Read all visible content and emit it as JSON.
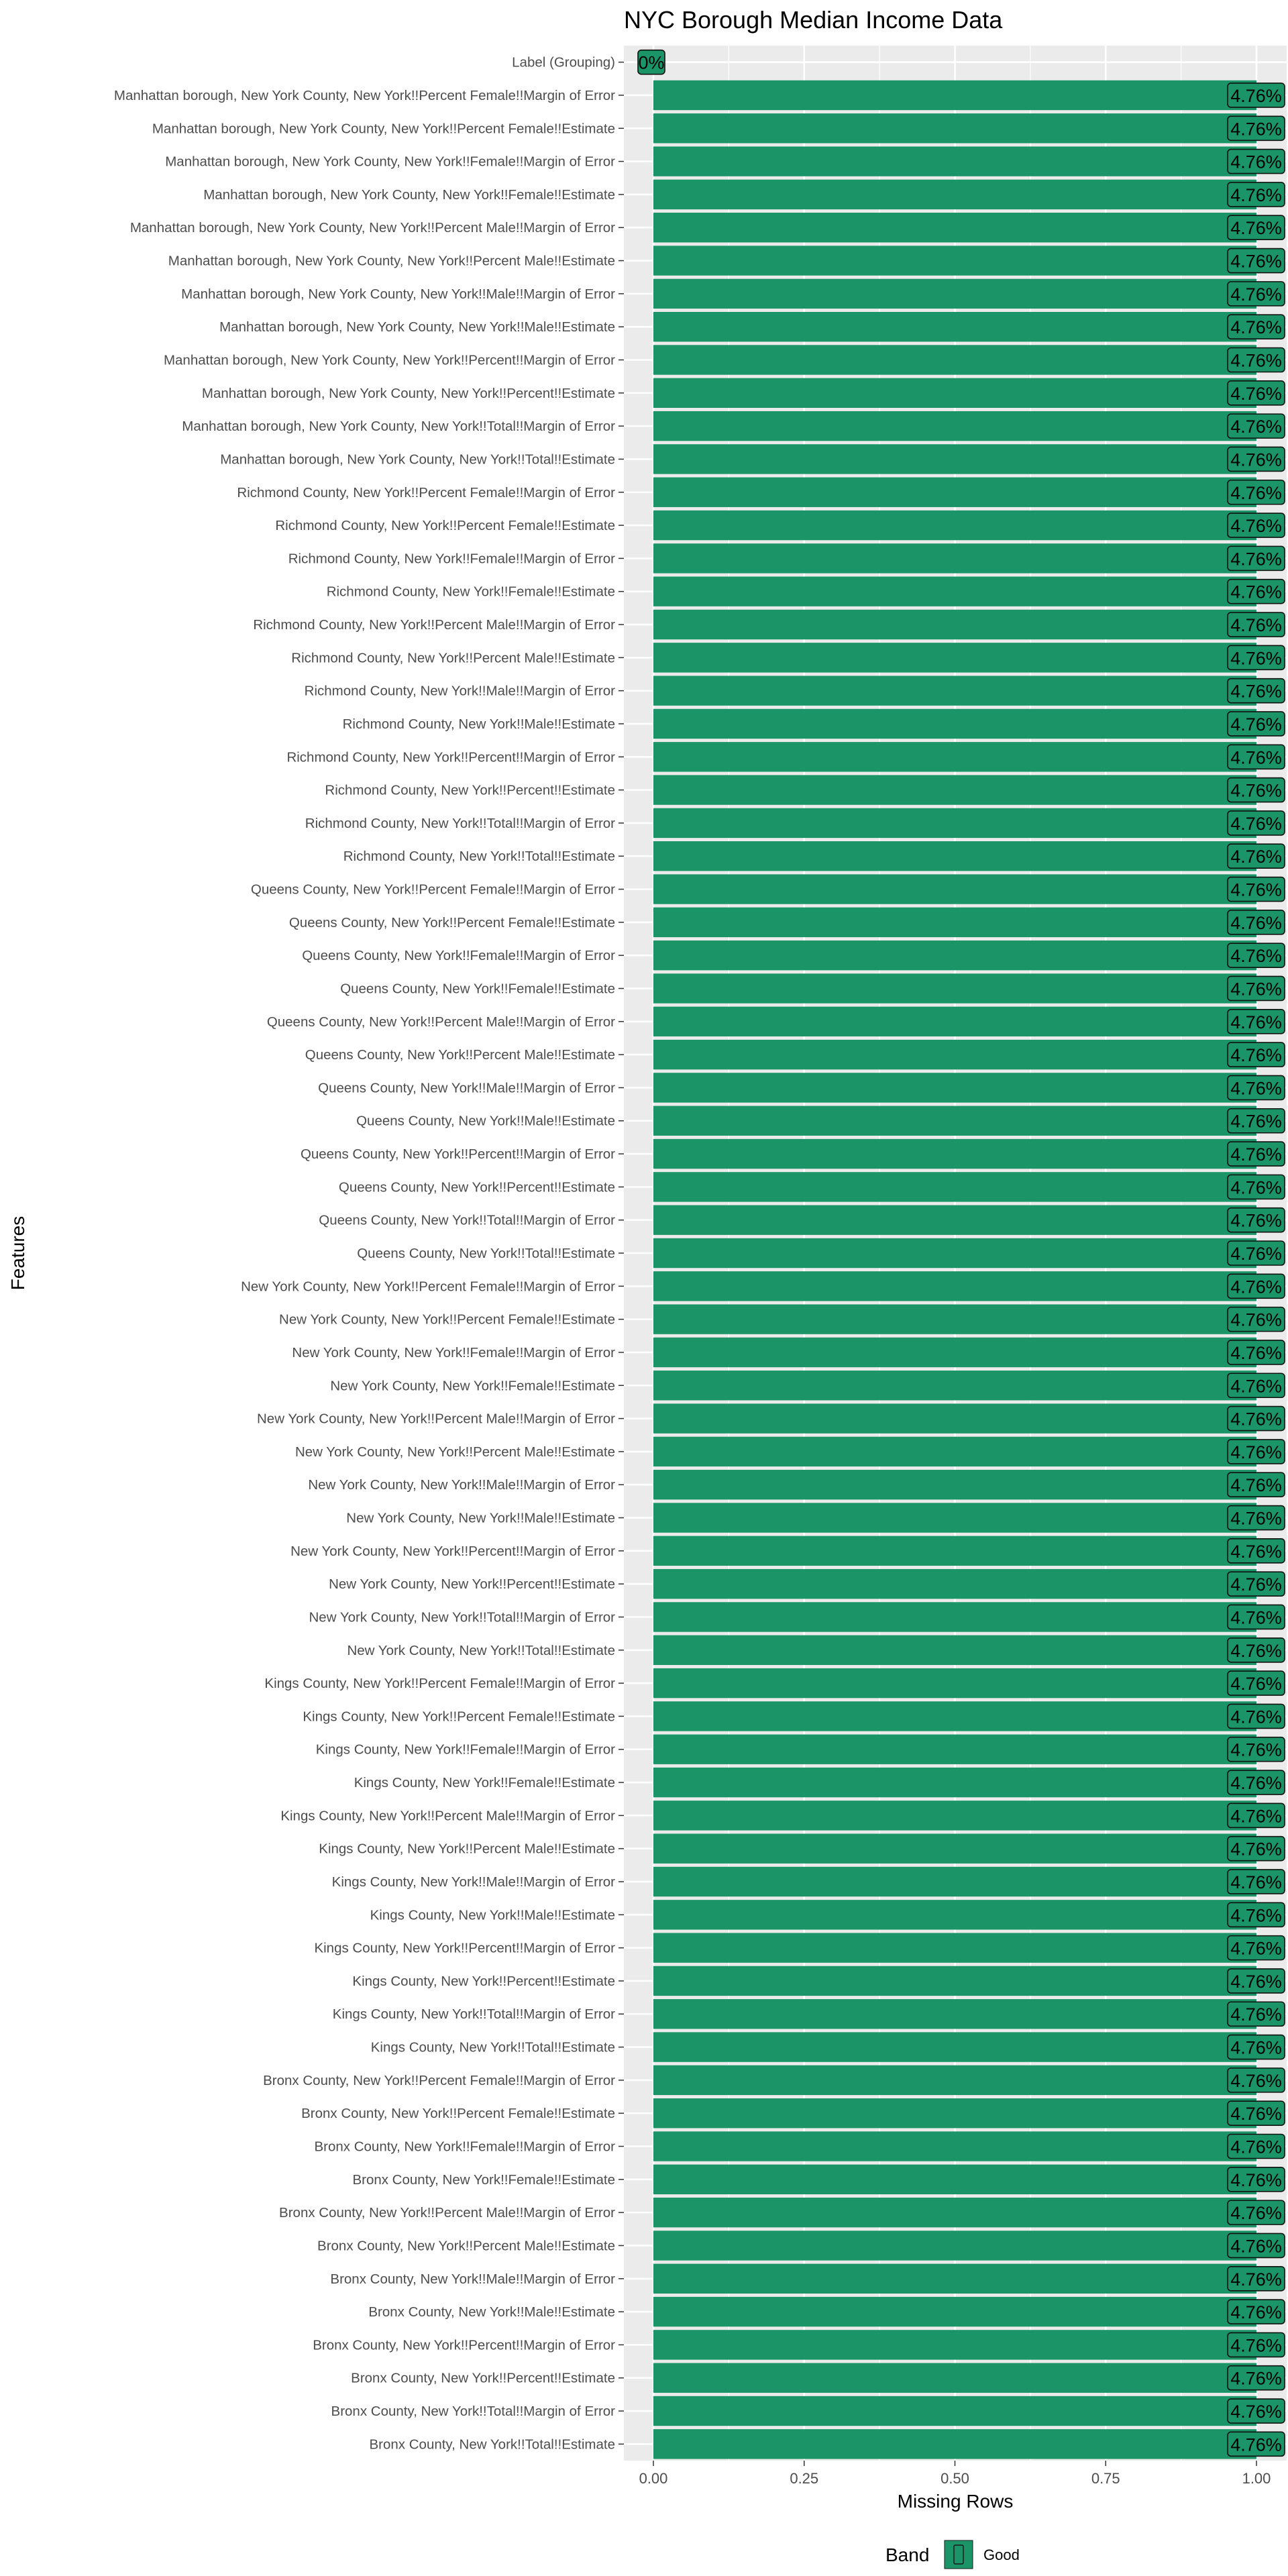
{
  "chart_data": {
    "type": "bar",
    "orientation": "horizontal",
    "title": "NYC Borough Median Income Data",
    "xlabel": "Missing Rows",
    "ylabel": "Features",
    "xlim": [
      0,
      1
    ],
    "x_ticks": [
      "0.00",
      "0.25",
      "0.50",
      "0.75",
      "1.00"
    ],
    "x_tick_values": [
      0,
      0.25,
      0.5,
      0.75,
      1.0
    ],
    "grid": true,
    "legend": {
      "title": "Band",
      "placement": "bottom",
      "entries": [
        {
          "label": "Good",
          "color": "#1b9567"
        }
      ]
    },
    "colors": {
      "panel_background": "#ebebeb",
      "gridline": "#ffffff",
      "bar_fill": "#1b9567",
      "label_fill": "#1b9567"
    },
    "categories": [
      "Label (Grouping)",
      "Manhattan borough, New York County, New York!!Percent Female!!Margin of Error",
      "Manhattan borough, New York County, New York!!Percent Female!!Estimate",
      "Manhattan borough, New York County, New York!!Female!!Margin of Error",
      "Manhattan borough, New York County, New York!!Female!!Estimate",
      "Manhattan borough, New York County, New York!!Percent Male!!Margin of Error",
      "Manhattan borough, New York County, New York!!Percent Male!!Estimate",
      "Manhattan borough, New York County, New York!!Male!!Margin of Error",
      "Manhattan borough, New York County, New York!!Male!!Estimate",
      "Manhattan borough, New York County, New York!!Percent!!Margin of Error",
      "Manhattan borough, New York County, New York!!Percent!!Estimate",
      "Manhattan borough, New York County, New York!!Total!!Margin of Error",
      "Manhattan borough, New York County, New York!!Total!!Estimate",
      "Richmond County, New York!!Percent Female!!Margin of Error",
      "Richmond County, New York!!Percent Female!!Estimate",
      "Richmond County, New York!!Female!!Margin of Error",
      "Richmond County, New York!!Female!!Estimate",
      "Richmond County, New York!!Percent Male!!Margin of Error",
      "Richmond County, New York!!Percent Male!!Estimate",
      "Richmond County, New York!!Male!!Margin of Error",
      "Richmond County, New York!!Male!!Estimate",
      "Richmond County, New York!!Percent!!Margin of Error",
      "Richmond County, New York!!Percent!!Estimate",
      "Richmond County, New York!!Total!!Margin of Error",
      "Richmond County, New York!!Total!!Estimate",
      "Queens County, New York!!Percent Female!!Margin of Error",
      "Queens County, New York!!Percent Female!!Estimate",
      "Queens County, New York!!Female!!Margin of Error",
      "Queens County, New York!!Female!!Estimate",
      "Queens County, New York!!Percent Male!!Margin of Error",
      "Queens County, New York!!Percent Male!!Estimate",
      "Queens County, New York!!Male!!Margin of Error",
      "Queens County, New York!!Male!!Estimate",
      "Queens County, New York!!Percent!!Margin of Error",
      "Queens County, New York!!Percent!!Estimate",
      "Queens County, New York!!Total!!Margin of Error",
      "Queens County, New York!!Total!!Estimate",
      "New York County, New York!!Percent Female!!Margin of Error",
      "New York County, New York!!Percent Female!!Estimate",
      "New York County, New York!!Female!!Margin of Error",
      "New York County, New York!!Female!!Estimate",
      "New York County, New York!!Percent Male!!Margin of Error",
      "New York County, New York!!Percent Male!!Estimate",
      "New York County, New York!!Male!!Margin of Error",
      "New York County, New York!!Male!!Estimate",
      "New York County, New York!!Percent!!Margin of Error",
      "New York County, New York!!Percent!!Estimate",
      "New York County, New York!!Total!!Margin of Error",
      "New York County, New York!!Total!!Estimate",
      "Kings County, New York!!Percent Female!!Margin of Error",
      "Kings County, New York!!Percent Female!!Estimate",
      "Kings County, New York!!Female!!Margin of Error",
      "Kings County, New York!!Female!!Estimate",
      "Kings County, New York!!Percent Male!!Margin of Error",
      "Kings County, New York!!Percent Male!!Estimate",
      "Kings County, New York!!Male!!Margin of Error",
      "Kings County, New York!!Male!!Estimate",
      "Kings County, New York!!Percent!!Margin of Error",
      "Kings County, New York!!Percent!!Estimate",
      "Kings County, New York!!Total!!Margin of Error",
      "Kings County, New York!!Total!!Estimate",
      "Bronx County, New York!!Percent Female!!Margin of Error",
      "Bronx County, New York!!Percent Female!!Estimate",
      "Bronx County, New York!!Female!!Margin of Error",
      "Bronx County, New York!!Female!!Estimate",
      "Bronx County, New York!!Percent Male!!Margin of Error",
      "Bronx County, New York!!Percent Male!!Estimate",
      "Bronx County, New York!!Male!!Margin of Error",
      "Bronx County, New York!!Male!!Estimate",
      "Bronx County, New York!!Percent!!Margin of Error",
      "Bronx County, New York!!Percent!!Estimate",
      "Bronx County, New York!!Total!!Margin of Error",
      "Bronx County, New York!!Total!!Estimate"
    ],
    "values": [
      0,
      1,
      1,
      1,
      1,
      1,
      1,
      1,
      1,
      1,
      1,
      1,
      1,
      1,
      1,
      1,
      1,
      1,
      1,
      1,
      1,
      1,
      1,
      1,
      1,
      1,
      1,
      1,
      1,
      1,
      1,
      1,
      1,
      1,
      1,
      1,
      1,
      1,
      1,
      1,
      1,
      1,
      1,
      1,
      1,
      1,
      1,
      1,
      1,
      1,
      1,
      1,
      1,
      1,
      1,
      1,
      1,
      1,
      1,
      1,
      1,
      1,
      1,
      1,
      1,
      1,
      1,
      1,
      1,
      1,
      1,
      1,
      1
    ],
    "data_labels": [
      "0%",
      "4.76%",
      "4.76%",
      "4.76%",
      "4.76%",
      "4.76%",
      "4.76%",
      "4.76%",
      "4.76%",
      "4.76%",
      "4.76%",
      "4.76%",
      "4.76%",
      "4.76%",
      "4.76%",
      "4.76%",
      "4.76%",
      "4.76%",
      "4.76%",
      "4.76%",
      "4.76%",
      "4.76%",
      "4.76%",
      "4.76%",
      "4.76%",
      "4.76%",
      "4.76%",
      "4.76%",
      "4.76%",
      "4.76%",
      "4.76%",
      "4.76%",
      "4.76%",
      "4.76%",
      "4.76%",
      "4.76%",
      "4.76%",
      "4.76%",
      "4.76%",
      "4.76%",
      "4.76%",
      "4.76%",
      "4.76%",
      "4.76%",
      "4.76%",
      "4.76%",
      "4.76%",
      "4.76%",
      "4.76%",
      "4.76%",
      "4.76%",
      "4.76%",
      "4.76%",
      "4.76%",
      "4.76%",
      "4.76%",
      "4.76%",
      "4.76%",
      "4.76%",
      "4.76%",
      "4.76%",
      "4.76%",
      "4.76%",
      "4.76%",
      "4.76%",
      "4.76%",
      "4.76%",
      "4.76%",
      "4.76%",
      "4.76%",
      "4.76%",
      "4.76%",
      "4.76%"
    ]
  }
}
